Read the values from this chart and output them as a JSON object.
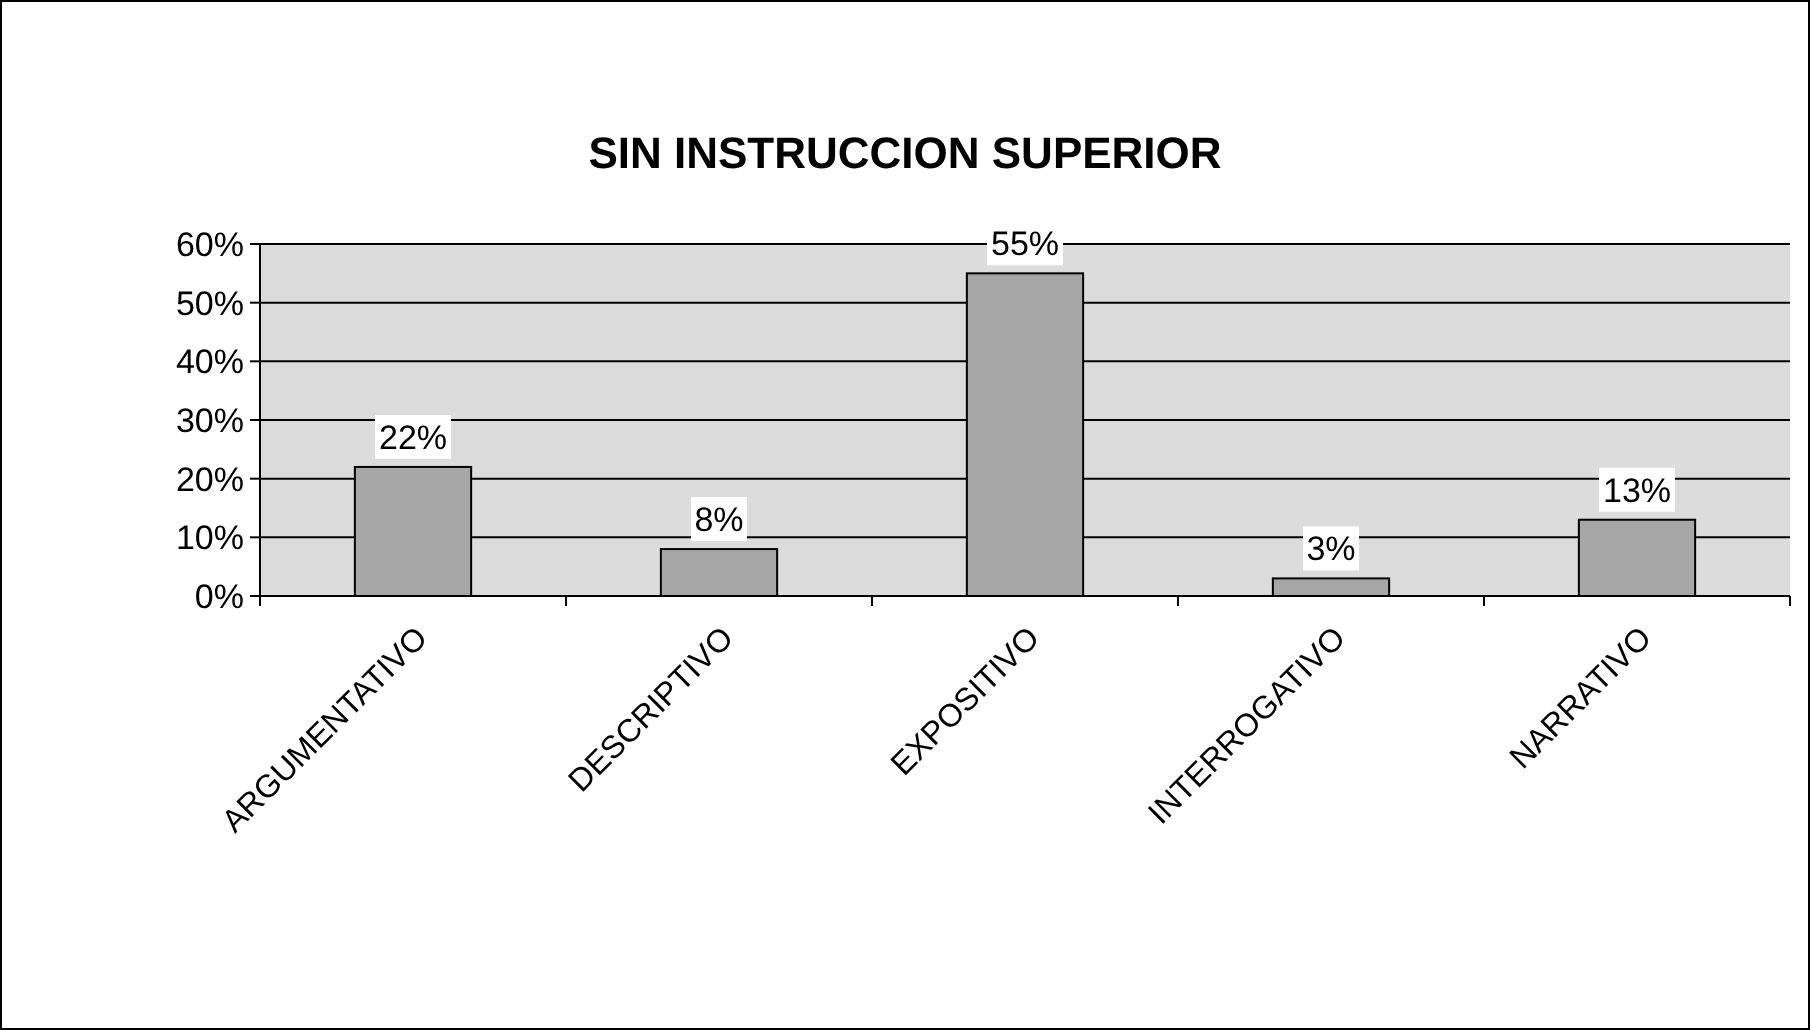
{
  "chart_data": {
    "type": "bar",
    "title": "SIN INSTRUCCION SUPERIOR",
    "categories": [
      "ARGUMENTATIVO",
      "DESCRIPTIVO",
      "EXPOSITIVO",
      "INTERROGATIVO",
      "NARRATIVO"
    ],
    "values": [
      22,
      8,
      55,
      3,
      13
    ],
    "value_labels": [
      "22%",
      "8%",
      "55%",
      "3%",
      "13%"
    ],
    "color": "#a6a6a6",
    "ylim": [
      0,
      60
    ],
    "yticks": [
      {
        "value": 0,
        "label": "0%"
      },
      {
        "value": 10,
        "label": "10%"
      },
      {
        "value": 20,
        "label": "20%"
      },
      {
        "value": 30,
        "label": "30%"
      },
      {
        "value": 40,
        "label": "40%"
      },
      {
        "value": 50,
        "label": "50%"
      },
      {
        "value": 60,
        "label": "60%"
      }
    ],
    "grid": "y"
  }
}
